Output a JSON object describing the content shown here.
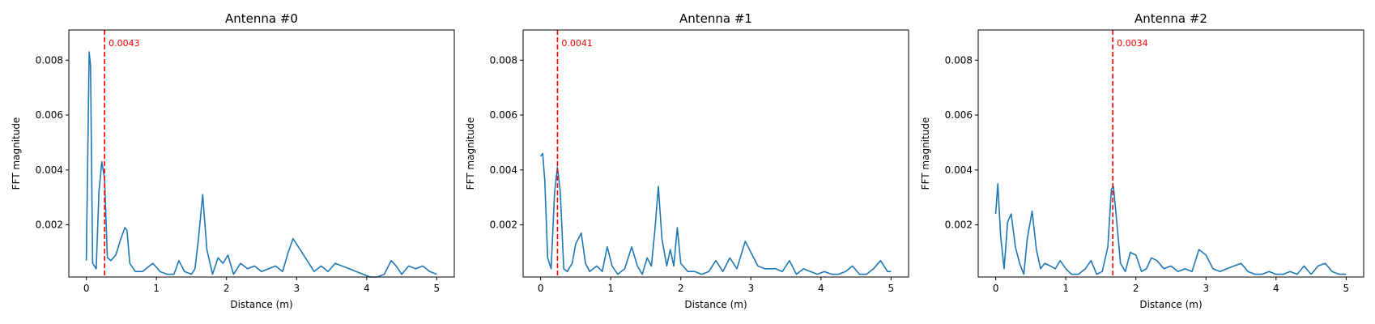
{
  "chart_data": [
    {
      "type": "line",
      "title": "Antenna #0",
      "xlabel": "Distance (m)",
      "ylabel": "FFT magnitude",
      "xlim": [
        -0.25,
        5.25
      ],
      "ylim": [
        0.0001,
        0.0091
      ],
      "xticks": [
        "0",
        "1",
        "2",
        "3",
        "4",
        "5"
      ],
      "yticks": [
        "0.002",
        "0.004",
        "0.006",
        "0.008"
      ],
      "marker": {
        "x": 0.26,
        "label": "0.0043"
      },
      "series": [
        {
          "x": [
            0,
            0.04,
            0.06,
            0.09,
            0.14,
            0.18,
            0.22,
            0.26,
            0.3,
            0.35,
            0.42,
            0.48,
            0.55,
            0.58,
            0.62,
            0.7,
            0.8,
            0.9,
            0.95,
            1.05,
            1.15,
            1.25,
            1.32,
            1.4,
            1.5,
            1.55,
            1.6,
            1.66,
            1.72,
            1.8,
            1.88,
            1.95,
            2.02,
            2.1,
            2.2,
            2.3,
            2.4,
            2.5,
            2.6,
            2.7,
            2.8,
            2.88,
            2.95,
            3.05,
            3.15,
            3.25,
            3.35,
            3.45,
            3.55,
            3.65,
            3.75,
            3.85,
            3.95,
            4.05,
            4.15,
            4.25,
            4.35,
            4.42,
            4.5,
            4.6,
            4.7,
            4.8,
            4.9,
            5.0
          ],
          "y": [
            0.0007,
            0.0083,
            0.0078,
            0.0006,
            0.0004,
            0.0032,
            0.0043,
            0.0037,
            0.0008,
            0.0007,
            0.0009,
            0.0014,
            0.0019,
            0.0018,
            0.0006,
            0.0003,
            0.0003,
            0.0005,
            0.0006,
            0.0003,
            0.0002,
            0.0002,
            0.0007,
            0.0003,
            0.0002,
            0.0004,
            0.0015,
            0.0031,
            0.0011,
            0.0002,
            0.0008,
            0.0006,
            0.0009,
            0.0002,
            0.0006,
            0.0004,
            0.0005,
            0.0003,
            0.0004,
            0.0005,
            0.0003,
            0.001,
            0.0015,
            0.0011,
            0.0007,
            0.0003,
            0.0005,
            0.0003,
            0.0006,
            0.0005,
            0.0004,
            0.0003,
            0.0002,
            0.0001,
            0.0001,
            0.0002,
            0.0007,
            0.0005,
            0.0002,
            0.0005,
            0.0004,
            0.0005,
            0.0003,
            0.0002
          ]
        }
      ]
    },
    {
      "type": "line",
      "title": "Antenna #1",
      "xlabel": "Distance (m)",
      "ylabel": "FFT magnitude",
      "xlim": [
        -0.25,
        5.25
      ],
      "ylim": [
        0.0001,
        0.0091
      ],
      "xticks": [
        "0",
        "1",
        "2",
        "3",
        "4",
        "5"
      ],
      "yticks": [
        "0.002",
        "0.004",
        "0.006",
        "0.008"
      ],
      "marker": {
        "x": 0.24,
        "label": "0.0041"
      },
      "series": [
        {
          "x": [
            0,
            0.03,
            0.06,
            0.1,
            0.15,
            0.2,
            0.24,
            0.28,
            0.33,
            0.38,
            0.45,
            0.5,
            0.58,
            0.64,
            0.7,
            0.8,
            0.88,
            0.95,
            1.02,
            1.1,
            1.2,
            1.3,
            1.38,
            1.45,
            1.52,
            1.58,
            1.63,
            1.68,
            1.73,
            1.8,
            1.85,
            1.9,
            1.95,
            2.0,
            2.1,
            2.2,
            2.3,
            2.4,
            2.5,
            2.6,
            2.7,
            2.8,
            2.92,
            3.0,
            3.1,
            3.2,
            3.35,
            3.45,
            3.55,
            3.65,
            3.75,
            3.85,
            3.95,
            4.05,
            4.15,
            4.25,
            4.35,
            4.45,
            4.55,
            4.65,
            4.75,
            4.85,
            4.95,
            5.0
          ],
          "y": [
            0.0045,
            0.0046,
            0.0036,
            0.0008,
            0.0004,
            0.0032,
            0.0041,
            0.0032,
            0.0004,
            0.0003,
            0.0006,
            0.0013,
            0.0017,
            0.0006,
            0.0003,
            0.0005,
            0.0003,
            0.0012,
            0.0005,
            0.0002,
            0.0004,
            0.0012,
            0.0005,
            0.0002,
            0.0008,
            0.0005,
            0.0018,
            0.0034,
            0.0015,
            0.0005,
            0.0011,
            0.0005,
            0.0019,
            0.0006,
            0.0003,
            0.0003,
            0.0002,
            0.0003,
            0.0007,
            0.0003,
            0.0008,
            0.0004,
            0.0014,
            0.001,
            0.0005,
            0.0004,
            0.0004,
            0.0003,
            0.0007,
            0.0002,
            0.0004,
            0.0003,
            0.0002,
            0.0003,
            0.0002,
            0.0002,
            0.0003,
            0.0005,
            0.0002,
            0.0002,
            0.0004,
            0.0007,
            0.0003,
            0.0003
          ]
        }
      ]
    },
    {
      "type": "line",
      "title": "Antenna #2",
      "xlabel": "Distance (m)",
      "ylabel": "FFT magnitude",
      "xlim": [
        -0.25,
        5.25
      ],
      "ylim": [
        0.0001,
        0.0091
      ],
      "xticks": [
        "0",
        "1",
        "2",
        "3",
        "4",
        "5"
      ],
      "yticks": [
        "0.002",
        "0.004",
        "0.006",
        "0.008"
      ],
      "marker": {
        "x": 1.67,
        "label": "0.0034"
      },
      "series": [
        {
          "x": [
            0,
            0.03,
            0.07,
            0.12,
            0.17,
            0.22,
            0.28,
            0.34,
            0.4,
            0.45,
            0.52,
            0.58,
            0.64,
            0.7,
            0.78,
            0.85,
            0.92,
            1.0,
            1.08,
            1.18,
            1.28,
            1.36,
            1.44,
            1.52,
            1.6,
            1.65,
            1.68,
            1.72,
            1.78,
            1.85,
            1.92,
            2.0,
            2.08,
            2.15,
            2.22,
            2.3,
            2.4,
            2.5,
            2.6,
            2.7,
            2.8,
            2.9,
            3.0,
            3.1,
            3.2,
            3.3,
            3.4,
            3.5,
            3.6,
            3.7,
            3.8,
            3.9,
            4.0,
            4.1,
            4.2,
            4.3,
            4.4,
            4.5,
            4.6,
            4.7,
            4.8,
            4.9,
            5.0
          ],
          "y": [
            0.0024,
            0.0035,
            0.0016,
            0.0004,
            0.0021,
            0.0024,
            0.0012,
            0.0006,
            0.0002,
            0.0015,
            0.0025,
            0.0011,
            0.0004,
            0.0006,
            0.0005,
            0.0004,
            0.0007,
            0.0004,
            0.0002,
            0.0002,
            0.0004,
            0.0007,
            0.0002,
            0.0003,
            0.0012,
            0.0033,
            0.0034,
            0.0023,
            0.0006,
            0.0003,
            0.001,
            0.0009,
            0.0003,
            0.0004,
            0.0008,
            0.0007,
            0.0004,
            0.0005,
            0.0003,
            0.0004,
            0.0003,
            0.0011,
            0.0009,
            0.0004,
            0.0003,
            0.0004,
            0.0005,
            0.0006,
            0.0003,
            0.0002,
            0.0002,
            0.0003,
            0.0002,
            0.0002,
            0.0003,
            0.0002,
            0.0005,
            0.0002,
            0.0005,
            0.0006,
            0.0003,
            0.0002,
            0.0002
          ]
        }
      ]
    }
  ],
  "style": {
    "line_color": "#1f77b4",
    "marker_color": "#ff0000",
    "axis_color": "#000000",
    "background": "#ffffff"
  }
}
